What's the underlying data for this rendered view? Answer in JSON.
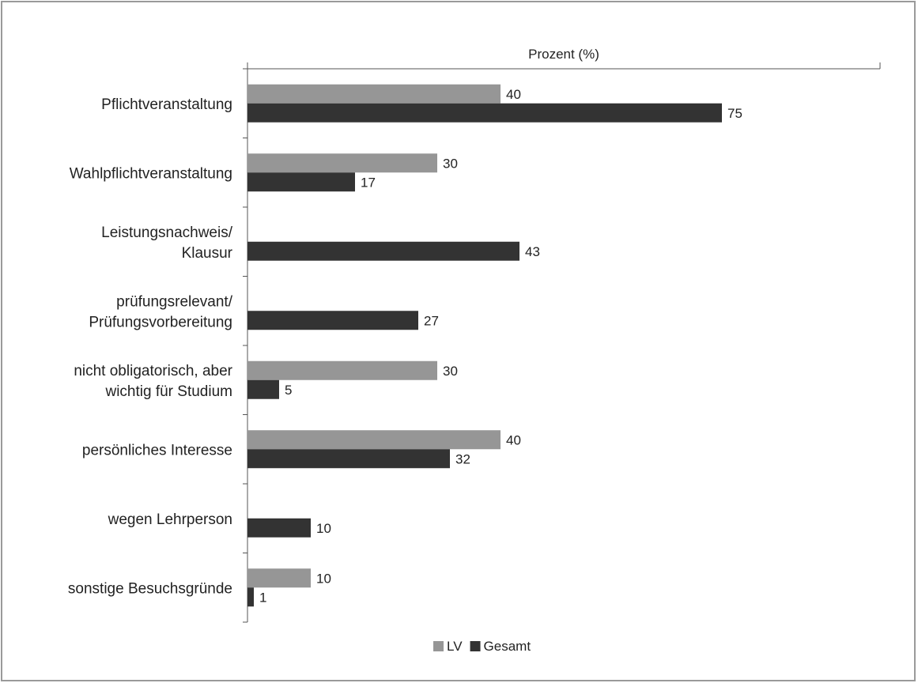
{
  "chart_data": {
    "type": "bar",
    "orientation": "horizontal",
    "title": "",
    "xlabel": "Prozent (%)",
    "ylabel": "",
    "xlim": [
      0,
      100
    ],
    "categories": [
      [
        "Pflichtveranstaltung"
      ],
      [
        "Wahlpflichtveranstaltung"
      ],
      [
        "Leistungsnachweis/",
        "Klausur"
      ],
      [
        "prüfungsrelevant/",
        "Prüfungsvorbereitung"
      ],
      [
        "nicht obligatorisch, aber",
        "wichtig für Studium"
      ],
      [
        "persönliches Interesse"
      ],
      [
        "wegen Lehrperson"
      ],
      [
        "sonstige Besuchsgründe"
      ]
    ],
    "series": [
      {
        "name": "LV",
        "color": "#969696",
        "values": [
          40,
          30,
          null,
          null,
          30,
          40,
          null,
          10
        ]
      },
      {
        "name": "Gesamt",
        "color": "#333333",
        "values": [
          75,
          17,
          43,
          27,
          5,
          32,
          10,
          1
        ]
      }
    ],
    "grid": false,
    "legend": "bottom-center",
    "xaxis_position": "top"
  }
}
